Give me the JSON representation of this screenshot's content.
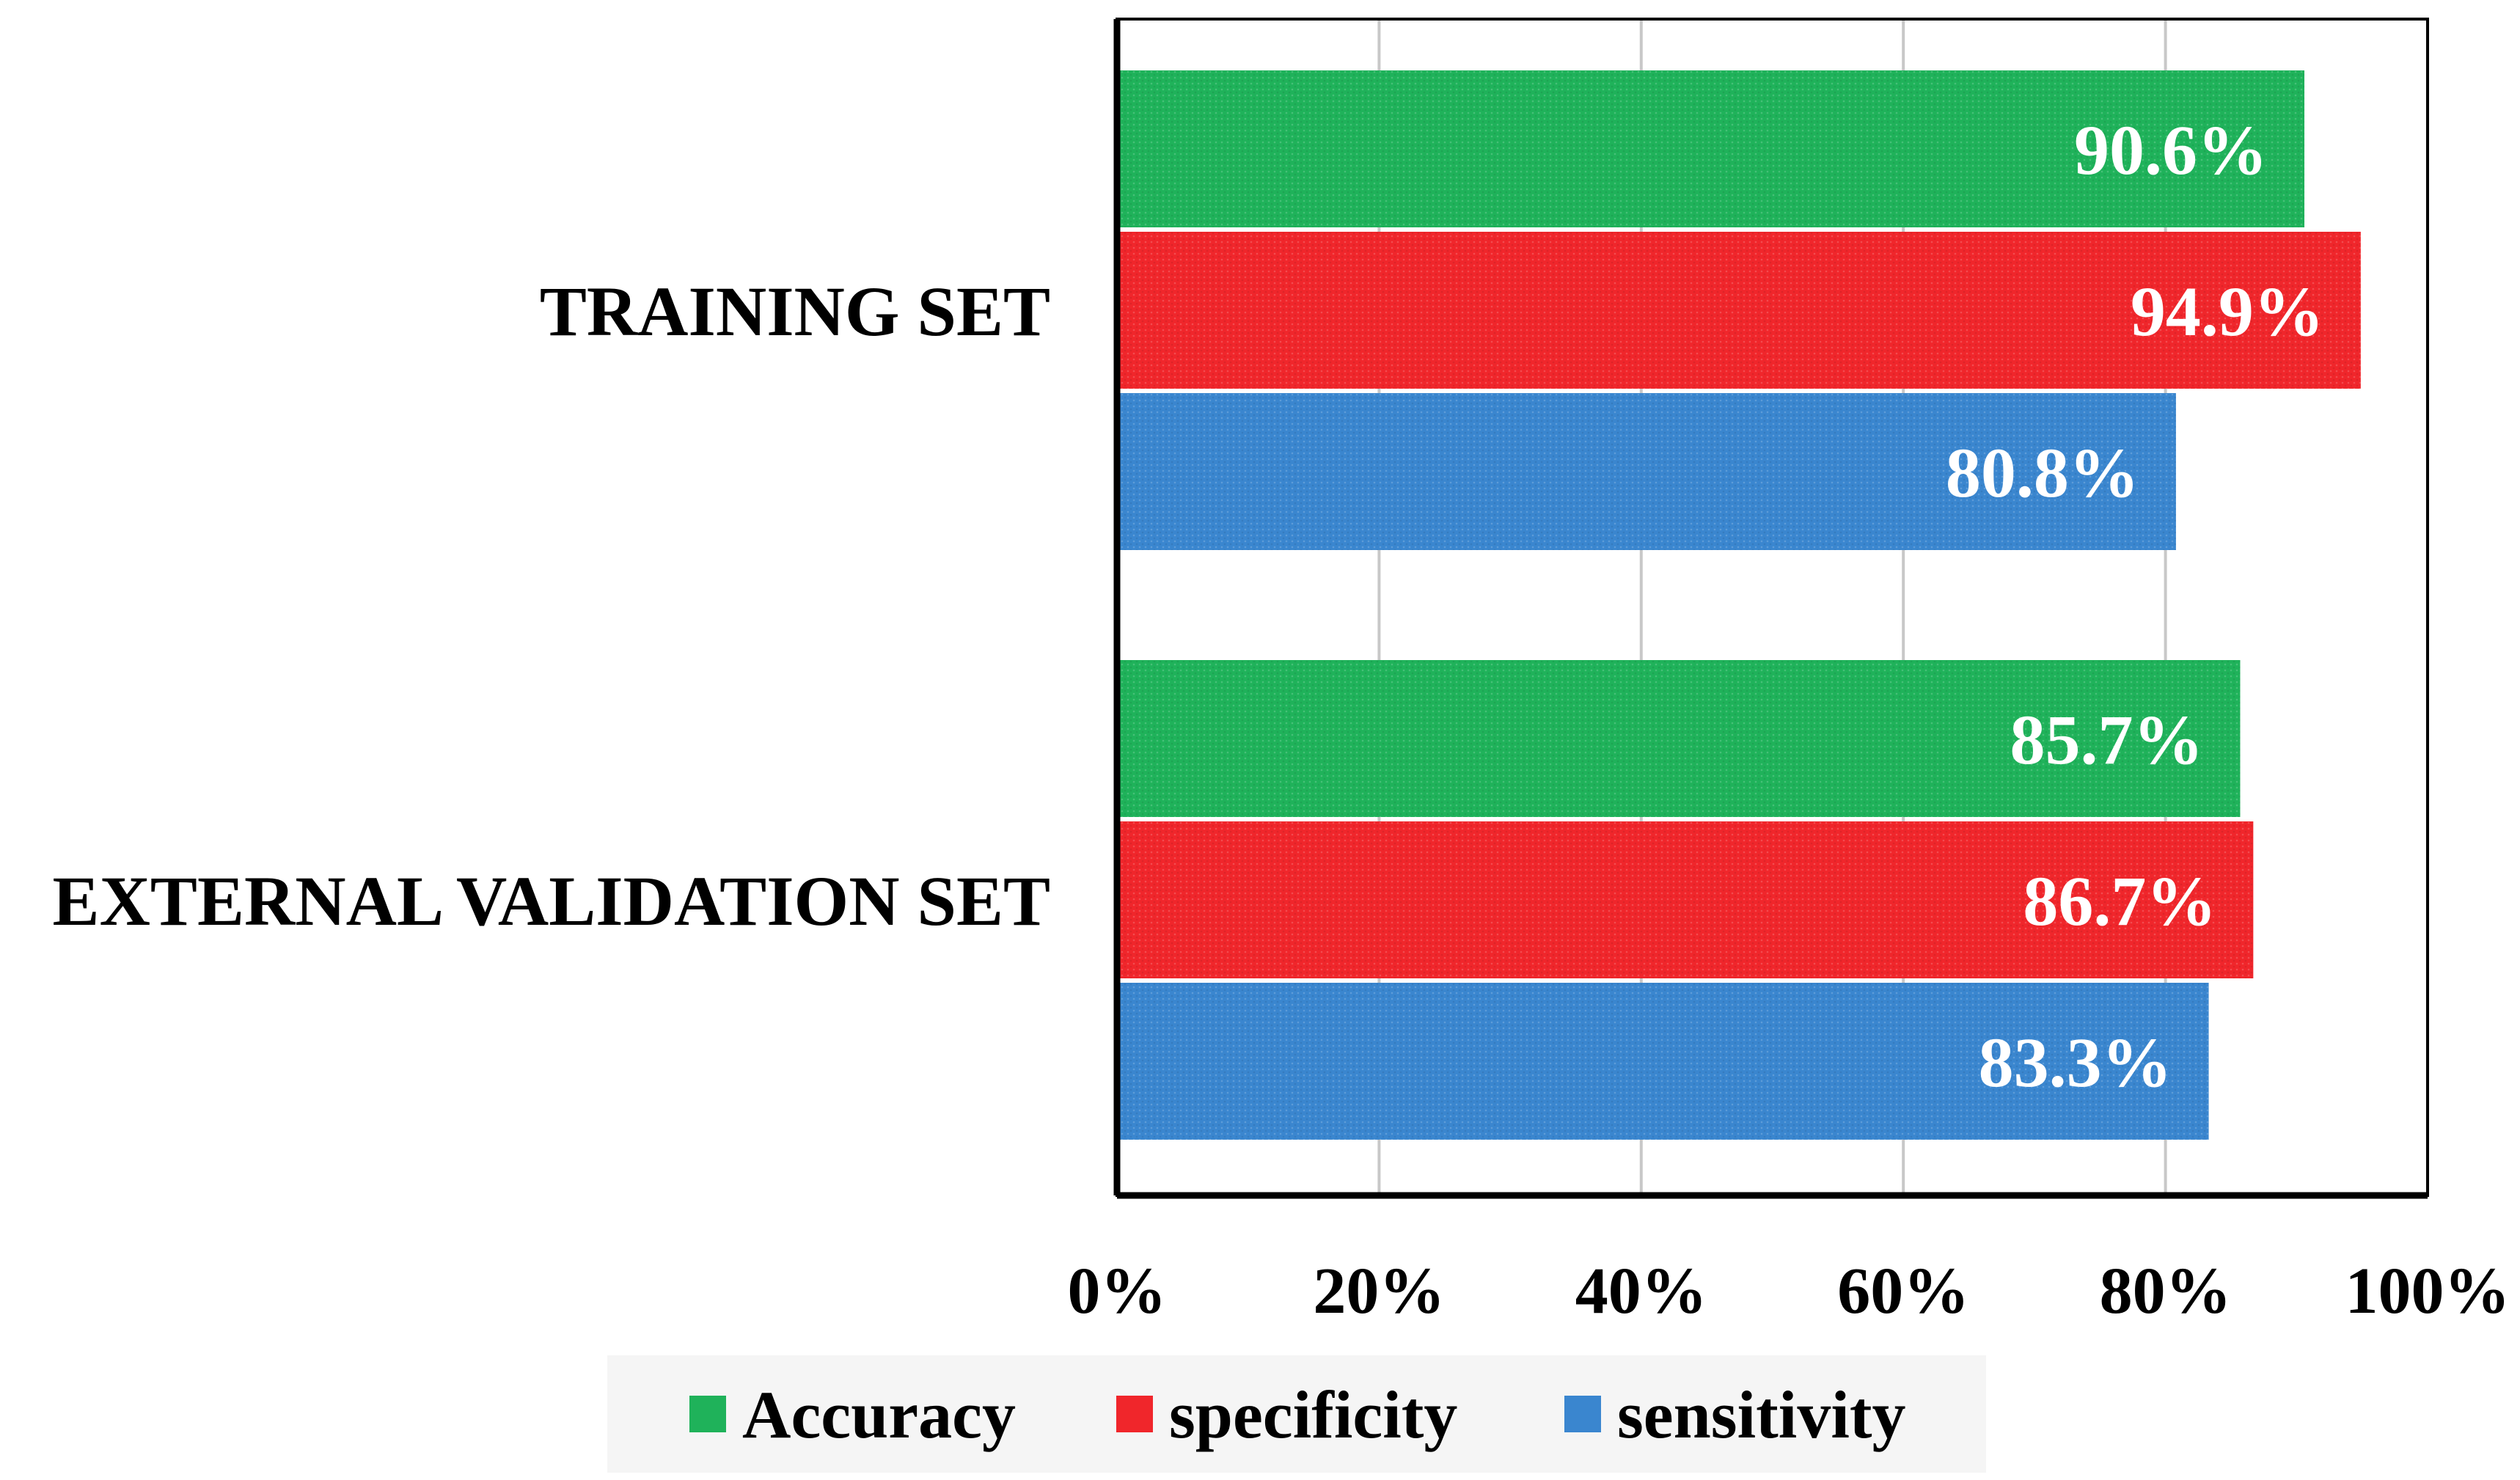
{
  "chart_data": {
    "type": "bar",
    "orientation": "horizontal",
    "categories": [
      "TRAINING SET",
      "EXTERNAL VALIDATION SET"
    ],
    "series": [
      {
        "name": "Accuracy",
        "color": "#1fb25a",
        "values": [
          90.6,
          85.7
        ],
        "labels": [
          "90.6%",
          "85.7%"
        ]
      },
      {
        "name": "specificity",
        "color": "#f0262b",
        "values": [
          94.9,
          86.7
        ],
        "labels": [
          "94.9%",
          "86.7%"
        ]
      },
      {
        "name": "sensitivity",
        "color": "#3a86cf",
        "values": [
          80.8,
          83.3
        ],
        "labels": [
          "80.8%",
          "83.3%"
        ]
      }
    ],
    "xlim": [
      0,
      100
    ],
    "xticks": [
      0,
      20,
      40,
      60,
      80,
      100
    ],
    "xtick_labels": [
      "0%",
      "20%",
      "40%",
      "60%",
      "80%",
      "100%"
    ],
    "grid": true,
    "legend_position": "bottom",
    "title": "",
    "xlabel": "",
    "ylabel": ""
  }
}
